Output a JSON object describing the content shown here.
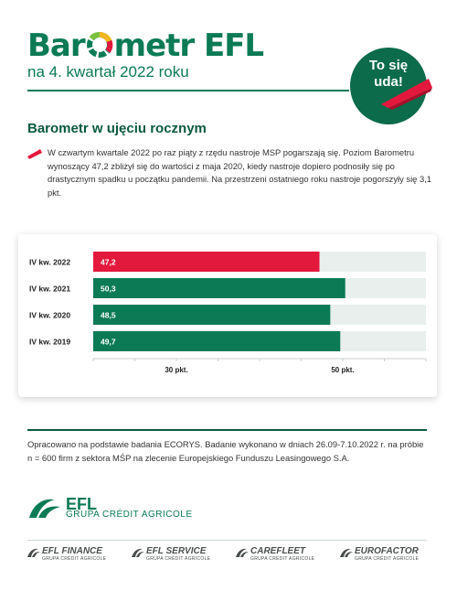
{
  "header": {
    "brand_pre": "Bar",
    "brand_post": "metr EFL",
    "subtitle": "na 4. kwartał 2022 roku",
    "badge_line1": "To się",
    "badge_line2": "uda!"
  },
  "section": {
    "title": "Barometr w ujęciu rocznym",
    "description": "W czwartym kwartale 2022 po raz piąty z rzędu nastroje MSP pogarszają się. Poziom Barometru wynoszący 47,2 zbliżył się do wartości z maja 2020, kiedy nastroje dopiero podnosiły się po drastycznym spadku u początku pandemii. Na przestrzeni ostatniego roku nastroje pogorszyły się 3,1 pkt."
  },
  "chart_data": {
    "type": "bar",
    "orientation": "horizontal",
    "categories": [
      "IV kw. 2022",
      "IV kw. 2021",
      "IV kw. 2020",
      "IV kw. 2019"
    ],
    "values": [
      47.2,
      50.3,
      48.5,
      49.7
    ],
    "value_labels": [
      "47,2",
      "50,3",
      "48,5",
      "49,7"
    ],
    "tick_labels": [
      "30 pkt.",
      "50 pkt."
    ],
    "tick_values": [
      30,
      50
    ],
    "xlim": [
      20,
      60
    ],
    "colors": {
      "highlight": "#e3183d",
      "default": "#0b7a55",
      "track": "#e8efec"
    }
  },
  "source": {
    "text": "Opracowano na podstawie badania ECORYS. Badanie wykonano w dniach 26.09-7.10.2022 r. na próbie n = 600 firm z sektora MŚP na zlecenie Europejskiego Funduszu Leasingowego S.A."
  },
  "logos": {
    "main_name": "EFL",
    "main_sub": "GRUPA CRÉDIT AGRICOLE",
    "brands": [
      {
        "name": "EFL FINANCE",
        "sub": "GRUPA CRÉDIT AGRICOLE"
      },
      {
        "name": "EFL SERVICE",
        "sub": "GRUPA CRÉDIT AGRICOLE"
      },
      {
        "name": "CAREFLEET",
        "sub": "GRUPA CRÉDIT AGRICOLE"
      },
      {
        "name": "EUROFACTOR",
        "sub": "GRUPA CRÉDIT AGRICOLE"
      }
    ]
  }
}
